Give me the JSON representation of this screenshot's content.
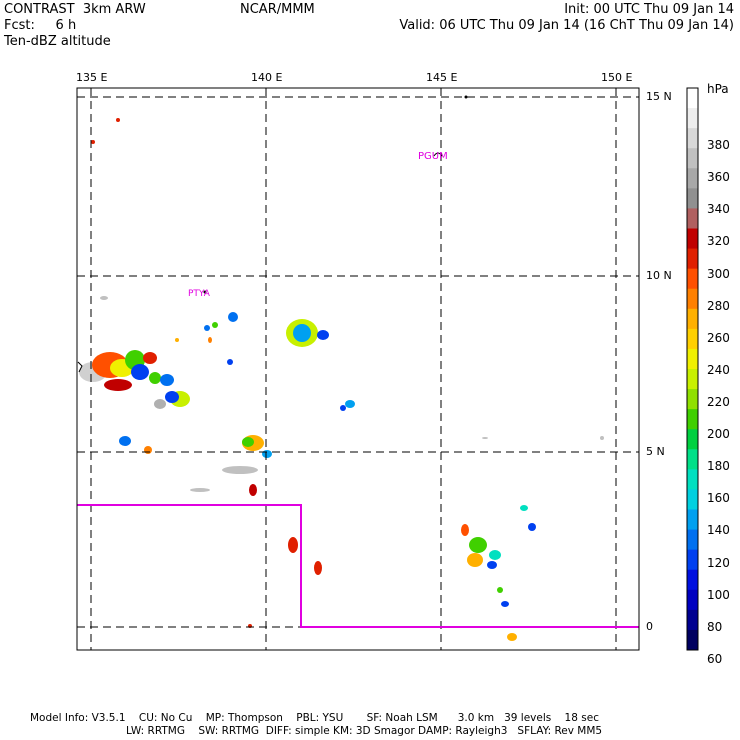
{
  "header": {
    "left_line1": "CONTRAST  3km ARW",
    "left_line2": "Fcst:     6 h",
    "left_line3": "Ten-dBZ altitude",
    "center_line1": "NCAR/MMM",
    "right_line1": "Init: 00 UTC Thu 09 Jan 14",
    "right_line2": "Valid: 06 UTC Thu 09 Jan 14 (16 ChT Thu 09 Jan 14)"
  },
  "map": {
    "lon_labels": [
      "135 E",
      "140 E",
      "145 E",
      "150 E"
    ],
    "lat_labels": [
      "15 N",
      "10 N",
      "5 N",
      "0"
    ],
    "place_labels": {
      "pgum": "PGUM",
      "ptya": "PTYA"
    },
    "colors": {
      "frame": "#000000",
      "domain_box": "#e000e0",
      "place_text": "#e000e0"
    }
  },
  "colorbar": {
    "unit": "hPa",
    "labels": [
      "380",
      "360",
      "340",
      "320",
      "300",
      "280",
      "260",
      "240",
      "220",
      "200",
      "180",
      "160",
      "140",
      "120",
      "100",
      "80",
      "60"
    ],
    "colors": [
      "#ffffff",
      "#eeeeee",
      "#d8d8d8",
      "#c0c0c0",
      "#a8a8a8",
      "#909090",
      "#b06060",
      "#c00000",
      "#e02000",
      "#ff5000",
      "#ff8000",
      "#ffb000",
      "#ffd000",
      "#f0f000",
      "#c8f000",
      "#90e000",
      "#40d000",
      "#00d040",
      "#00e088",
      "#00e0c0",
      "#00d0e0",
      "#00a0f0",
      "#0070f0",
      "#0040f0",
      "#0010e0",
      "#0000c0",
      "#000090",
      "#000060"
    ]
  },
  "footer": {
    "line1": "Model Info: V3.5.1    CU: No Cu    MP: Thompson    PBL: YSU       SF: Noah LSM      3.0 km   39 levels    18 sec",
    "line2": "LW: RRTMG    SW: RRTMG  DIFF: simple KM: 3D Smagor DAMP: Rayleigh3   SFLAY: Rev MM5"
  }
}
